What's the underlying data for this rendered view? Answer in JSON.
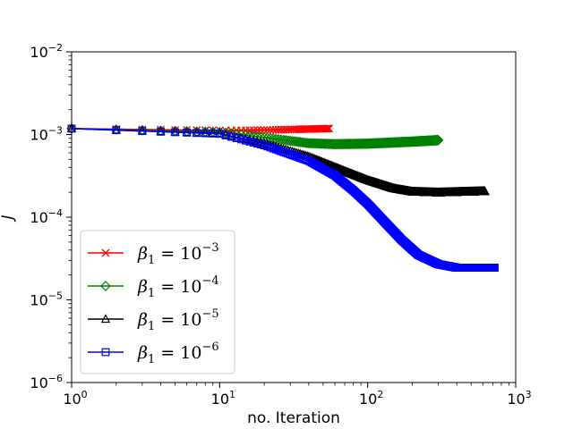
{
  "chart_data": {
    "type": "line",
    "xscale": "log",
    "yscale": "log",
    "xlim": [
      1,
      1000
    ],
    "ylim": [
      1e-06,
      0.01
    ],
    "xlabel": "no. Iteration",
    "ylabel": "J",
    "x_ticks": [
      {
        "value": 1,
        "base": "10",
        "exp": "0"
      },
      {
        "value": 10,
        "base": "10",
        "exp": "1"
      },
      {
        "value": 100,
        "base": "10",
        "exp": "2"
      },
      {
        "value": 1000,
        "base": "10",
        "exp": "3"
      }
    ],
    "y_ticks": [
      {
        "value": 1e-06,
        "base": "10",
        "exp": "−6"
      },
      {
        "value": 1e-05,
        "base": "10",
        "exp": "−5"
      },
      {
        "value": 0.0001,
        "base": "10",
        "exp": "−4"
      },
      {
        "value": 0.001,
        "base": "10",
        "exp": "−3"
      },
      {
        "value": 0.01,
        "base": "10",
        "exp": "−2"
      }
    ],
    "grid": false,
    "legend_position": "lower-left",
    "series": [
      {
        "name": "β1 = 10^-3",
        "label_main": "β",
        "label_sub": "1",
        "label_eq": " = 10",
        "label_exp": "−3",
        "color": "#ff0000",
        "marker": "x",
        "iterations": 55,
        "points": [
          [
            1,
            0.00118
          ],
          [
            10,
            0.00112
          ],
          [
            20,
            0.00113
          ],
          [
            55,
            0.00118
          ]
        ]
      },
      {
        "name": "β1 = 10^-4",
        "label_main": "β",
        "label_sub": "1",
        "label_eq": " = 10",
        "label_exp": "−4",
        "color": "#008000",
        "marker": "diamond",
        "iterations": 300,
        "points": [
          [
            1,
            0.00118
          ],
          [
            10,
            0.00107
          ],
          [
            20,
            0.00092
          ],
          [
            40,
            0.000785
          ],
          [
            60,
            0.000765
          ],
          [
            100,
            0.000775
          ],
          [
            200,
            0.00082
          ],
          [
            300,
            0.000855
          ]
        ]
      },
      {
        "name": "β1 = 10^-5",
        "label_main": "β",
        "label_sub": "1",
        "label_eq": " = 10",
        "label_exp": "−5",
        "color": "#000000",
        "marker": "triangle",
        "iterations": 620,
        "points": [
          [
            1,
            0.00118
          ],
          [
            10,
            0.00103
          ],
          [
            20,
            0.00078
          ],
          [
            40,
            0.00054
          ],
          [
            70,
            0.00036
          ],
          [
            100,
            0.00028
          ],
          [
            150,
            0.000222
          ],
          [
            200,
            0.000203
          ],
          [
            300,
            0.000198
          ],
          [
            450,
            0.000202
          ],
          [
            620,
            0.000205
          ]
        ]
      },
      {
        "name": "β1 = 10^-6",
        "label_main": "β",
        "label_sub": "1",
        "label_eq": " = 10",
        "label_exp": "−6",
        "color": "#0000ff",
        "marker": "square",
        "iterations": 720,
        "points": [
          [
            1,
            0.00118
          ],
          [
            10,
            0.00102
          ],
          [
            20,
            0.00074
          ],
          [
            40,
            0.00048
          ],
          [
            60,
            0.00032
          ],
          [
            80,
            0.00021
          ],
          [
            100,
            0.000145
          ],
          [
            130,
            8.8e-05
          ],
          [
            170,
            5.3e-05
          ],
          [
            220,
            3.5e-05
          ],
          [
            300,
            2.7e-05
          ],
          [
            400,
            2.45e-05
          ],
          [
            720,
            2.45e-05
          ]
        ]
      }
    ]
  }
}
